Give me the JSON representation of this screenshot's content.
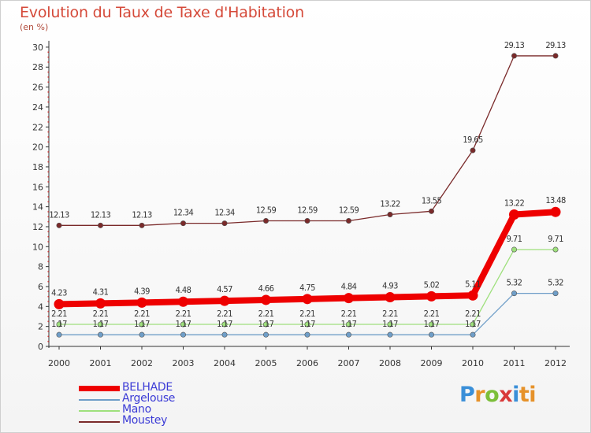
{
  "chart_data": {
    "type": "line",
    "title": "Evolution du Taux de Taxe d'Habitation",
    "unit_label": "(en %)",
    "x": [
      "2000",
      "2001",
      "2002",
      "2003",
      "2004",
      "2005",
      "2006",
      "2007",
      "2008",
      "2009",
      "2010",
      "2011",
      "2012"
    ],
    "ylim": [
      0,
      30
    ],
    "yticks": [
      0,
      2,
      4,
      6,
      8,
      10,
      12,
      14,
      16,
      18,
      20,
      22,
      24,
      26,
      28,
      30
    ],
    "grid": false,
    "legend_position": "bottom-left",
    "series": [
      {
        "name": "BELHADE",
        "color": "#ee0000",
        "values": [
          4.23,
          4.31,
          4.39,
          4.48,
          4.57,
          4.66,
          4.75,
          4.84,
          4.93,
          5.02,
          5.11,
          13.22,
          13.48
        ],
        "labels": [
          "4.23",
          "4.31",
          "4.39",
          "4.48",
          "4.57",
          "4.66",
          "4.75",
          "4.84",
          "4.93",
          "5.02",
          "5.11",
          "13.22",
          "13.48"
        ]
      },
      {
        "name": "Argelouse",
        "color": "#6f9ec8",
        "values": [
          1.17,
          1.17,
          1.17,
          1.17,
          1.17,
          1.17,
          1.17,
          1.17,
          1.17,
          1.17,
          1.17,
          5.32,
          5.32
        ],
        "labels": [
          "1.17",
          "1.17",
          "1.17",
          "1.17",
          "1.17",
          "1.17",
          "1.17",
          "1.17",
          "1.17",
          "1.17",
          "1.17",
          "5.32",
          "5.32"
        ]
      },
      {
        "name": "Mano",
        "color": "#9ee07c",
        "values": [
          2.21,
          2.21,
          2.21,
          2.21,
          2.21,
          2.21,
          2.21,
          2.21,
          2.21,
          2.21,
          2.21,
          9.71,
          9.71
        ],
        "labels": [
          "2.21",
          "2.21",
          "2.21",
          "2.21",
          "2.21",
          "2.21",
          "2.21",
          "2.21",
          "2.21",
          "2.21",
          "2.21",
          "9.71",
          "9.71"
        ]
      },
      {
        "name": "Moustey",
        "color": "#7a2a2a",
        "values": [
          12.13,
          12.13,
          12.13,
          12.34,
          12.34,
          12.59,
          12.59,
          12.59,
          13.22,
          13.55,
          19.65,
          29.13,
          29.13
        ],
        "labels": [
          "12.13",
          "12.13",
          "12.13",
          "12.34",
          "12.34",
          "12.59",
          "12.59",
          "12.59",
          "13.22",
          "13.55",
          "19.65",
          "29.13",
          "29.13"
        ]
      }
    ]
  },
  "logo": {
    "text": "Proxiti"
  }
}
